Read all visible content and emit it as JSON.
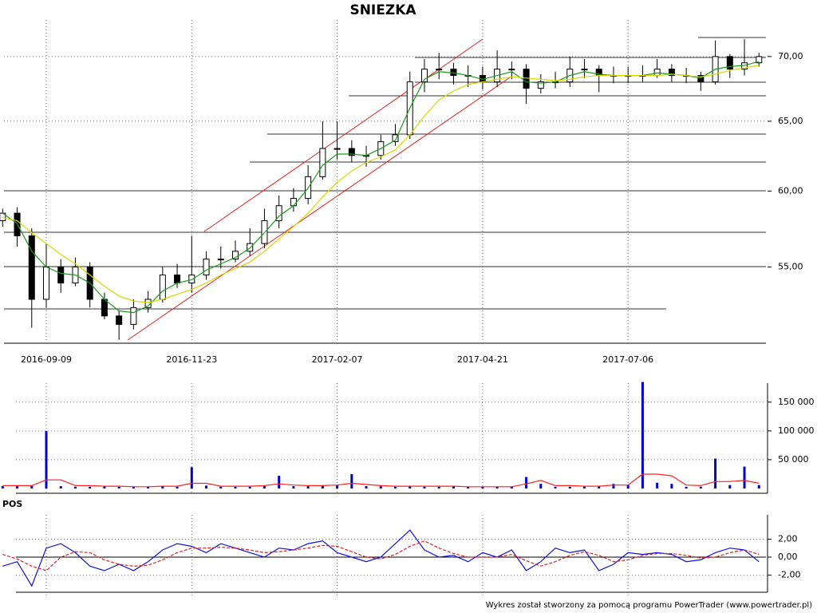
{
  "chart_data": [
    {
      "type": "candlestick",
      "title": "SNIEZKA",
      "log": true,
      "grid": true,
      "categories": [
        null,
        null,
        null,
        "2016-09-09",
        null,
        null,
        null,
        null,
        null,
        null,
        null,
        null,
        null,
        "2016-11-23",
        null,
        null,
        null,
        null,
        null,
        null,
        null,
        null,
        null,
        "2017-02-07",
        null,
        null,
        null,
        null,
        null,
        null,
        null,
        null,
        null,
        "2017-04-21",
        null,
        null,
        null,
        null,
        null,
        null,
        null,
        null,
        null,
        "2017-07-06",
        null,
        null,
        null,
        null,
        null,
        null,
        null,
        null,
        null
      ],
      "open": [
        58,
        58.5,
        57,
        53,
        55,
        54,
        55,
        53,
        52,
        51.5,
        52.5,
        53,
        54.5,
        54,
        54.5,
        55.5,
        55.5,
        56,
        56.5,
        58,
        59,
        59.5,
        61,
        63,
        63,
        62.5,
        62.5,
        63.5,
        64,
        68,
        69,
        69,
        68.5,
        68.5,
        68,
        69,
        69,
        67.5,
        68,
        68,
        69,
        69,
        68.5,
        68.5,
        68.5,
        68.5,
        69,
        68.5,
        68.5,
        68,
        70,
        69,
        69.5
      ],
      "high": [
        58.8,
        58.9,
        57.5,
        56.5,
        55.5,
        55.6,
        55.3,
        53.4,
        52.3,
        53,
        53.5,
        55,
        55.2,
        57,
        56,
        56.3,
        56.7,
        57.5,
        58.8,
        59.7,
        60.2,
        61.8,
        65,
        65,
        63.6,
        63.2,
        64,
        64.8,
        68.8,
        69.8,
        70.3,
        69.5,
        69.3,
        69.2,
        70.5,
        69.6,
        69.4,
        68.6,
        68.8,
        70,
        69.8,
        69.3,
        69.2,
        69.2,
        69.3,
        69.8,
        69.4,
        69.1,
        68.8,
        71.3,
        70.2,
        71.4,
        70.3
      ],
      "low": [
        57.6,
        56.3,
        51.3,
        52.5,
        53.4,
        53.8,
        52.5,
        51.8,
        50.6,
        51.2,
        52.2,
        52.8,
        53.7,
        53.4,
        54.2,
        54.9,
        55.3,
        55.7,
        56.2,
        57.5,
        58.6,
        59.1,
        60.8,
        62.2,
        62,
        61.7,
        62.2,
        63.2,
        63.7,
        67.2,
        68.2,
        67.8,
        67.6,
        67.4,
        67.6,
        68.2,
        66.3,
        67.1,
        67.5,
        67.6,
        68.3,
        67.2,
        67.9,
        67.9,
        68,
        68.3,
        68,
        67.9,
        67.3,
        67.8,
        68.3,
        68.5,
        69.2
      ],
      "close": [
        58.5,
        57,
        53,
        55,
        54,
        55,
        53,
        52,
        51.5,
        52.5,
        53,
        54.5,
        54,
        54.5,
        55.5,
        55.5,
        56,
        56.5,
        58,
        59,
        59.5,
        61,
        63,
        63,
        62.5,
        62.5,
        63.5,
        64,
        68,
        69,
        69,
        68.5,
        68.5,
        68,
        69,
        69,
        67.5,
        68,
        68,
        69,
        69,
        68.5,
        68.5,
        68.5,
        68.5,
        69,
        68.5,
        68.5,
        68,
        70,
        69,
        69.5,
        70
      ],
      "series": [
        {
          "color": "#1a9a1a",
          "values": [
            58.5,
            57.8,
            56,
            55,
            54.6,
            54.5,
            54,
            53,
            52.3,
            52.2,
            52.6,
            53.5,
            54,
            54.2,
            54.8,
            55.2,
            55.6,
            56.2,
            57.2,
            58.3,
            59,
            60.2,
            61.8,
            62.6,
            62.6,
            62.5,
            63,
            63.6,
            66,
            68.2,
            68.8,
            68.7,
            68.5,
            68.2,
            68.5,
            68.8,
            68,
            67.9,
            68,
            68.5,
            68.8,
            68.6,
            68.5,
            68.5,
            68.5,
            68.7,
            68.6,
            68.5,
            68.3,
            69,
            69.2,
            69.3,
            69.6
          ]
        },
        {
          "color": "#d8d800",
          "values": [
            58.2,
            58,
            57.2,
            56.5,
            55.8,
            55.2,
            54.5,
            53.8,
            53.2,
            52.9,
            52.8,
            53,
            53.3,
            53.6,
            54,
            54.5,
            54.9,
            55.3,
            56,
            56.8,
            57.6,
            58.5,
            59.6,
            60.6,
            61.4,
            62,
            62.4,
            62.9,
            64,
            65.4,
            66.6,
            67.3,
            67.8,
            68,
            68.2,
            68.4,
            68.3,
            68.2,
            68.1,
            68.2,
            68.4,
            68.5,
            68.5,
            68.5,
            68.5,
            68.5,
            68.6,
            68.5,
            68.4,
            68.6,
            68.9,
            69.1,
            69.3
          ]
        }
      ],
      "ylim": [
        50.4,
        73.0
      ],
      "yticks": [
        {
          "value": 55,
          "label": "55,00"
        },
        {
          "value": 60,
          "label": "60,00"
        },
        {
          "value": 65,
          "label": "65,00"
        },
        {
          "value": 70,
          "label": "70,00"
        }
      ]
    },
    {
      "type": "bar",
      "grid": true,
      "series": [
        {
          "type": "bar",
          "color": "#0000cc",
          "values": [
            4000,
            4000,
            5000,
            100000,
            4000,
            3000,
            3000,
            4000,
            3000,
            3000,
            3000,
            4000,
            3000,
            37000,
            5000,
            3000,
            3000,
            3000,
            4000,
            22000,
            4000,
            4000,
            5000,
            6000,
            25000,
            4000,
            4000,
            3000,
            4000,
            3000,
            3000,
            4000,
            3000,
            3000,
            3000,
            3000,
            20000,
            8000,
            3000,
            3000,
            3000,
            4000,
            8000,
            6000,
            185000,
            10000,
            8000,
            3000,
            3000,
            52000,
            6000,
            38000,
            6000
          ]
        },
        {
          "type": "line",
          "color": "#ff2020",
          "values": [
            5000,
            5000,
            5000,
            15000,
            15000,
            5000,
            5000,
            4000,
            4000,
            3000,
            3000,
            4000,
            4000,
            9000,
            9000,
            4000,
            4000,
            4000,
            5000,
            8000,
            6000,
            5000,
            5000,
            6000,
            9000,
            7000,
            5000,
            4000,
            4000,
            4000,
            4000,
            4000,
            3000,
            3000,
            3000,
            3000,
            8000,
            14000,
            5000,
            5000,
            4000,
            4000,
            6000,
            6000,
            25000,
            25000,
            22000,
            6000,
            5000,
            12000,
            12000,
            14000,
            9000
          ]
        }
      ],
      "ylim": [
        0,
        183000
      ],
      "yticks": [
        {
          "value": 50000,
          "label": "50 000"
        },
        {
          "value": 100000,
          "label": "100 000"
        },
        {
          "value": 150000,
          "label": "150 000"
        }
      ]
    },
    {
      "type": "line",
      "title": "POS",
      "grid": true,
      "series": [
        {
          "color": "#1010dd",
          "style": "solid",
          "values": [
            -1,
            -0.5,
            -3.2,
            1,
            1.5,
            0.5,
            -1,
            -1.5,
            -0.8,
            -1.5,
            -0.5,
            0.8,
            1.5,
            1.2,
            0.5,
            1.5,
            1,
            0.5,
            0,
            1,
            0.8,
            1.5,
            1.8,
            0.5,
            0,
            -0.5,
            0,
            1.5,
            3,
            0.8,
            0,
            0.2,
            -0.5,
            0.5,
            0,
            0.8,
            -1.5,
            -0.5,
            1,
            0.5,
            0.8,
            -1.5,
            -0.8,
            0.5,
            0.3,
            0.5,
            0.3,
            -0.5,
            -0.3,
            0.5,
            1,
            0.8,
            -0.5
          ]
        },
        {
          "color": "#dd2020",
          "style": "dashed",
          "values": [
            0.3,
            -0.2,
            -1,
            -1.5,
            0,
            0.6,
            0.5,
            -0.3,
            -0.8,
            -1,
            -0.9,
            -0.3,
            0.5,
            1,
            1,
            1.1,
            1,
            0.8,
            0.5,
            0.6,
            0.8,
            1,
            1.3,
            1.2,
            0.6,
            0,
            -0.2,
            0.3,
            1.2,
            1.8,
            1,
            0.4,
            0,
            0,
            0,
            0.3,
            -0.4,
            -1,
            -0.5,
            0.2,
            0.6,
            0.2,
            -0.5,
            -0.3,
            0.2,
            0.4,
            0.4,
            0.2,
            -0.1,
            0,
            0.5,
            0.8,
            0.3
          ]
        }
      ],
      "ylim": [
        -3.9,
        4.7
      ],
      "yticks": [
        {
          "value": -2,
          "label": "-2,00"
        },
        {
          "value": 0,
          "label": "0,00"
        },
        {
          "value": 2,
          "label": "2,00"
        }
      ]
    }
  ],
  "footer": "Wykres został stworzony za pomocą programu PowerTrader (www.powertrader.pl)"
}
